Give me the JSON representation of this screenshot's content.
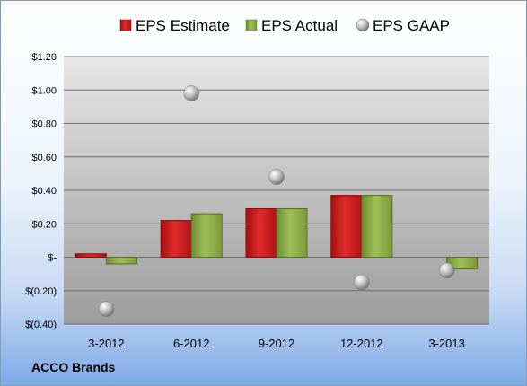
{
  "company": "ACCO Brands",
  "colors": {
    "estimate": "#d42020",
    "actual": "#8fb04a",
    "gaap": "#b8b8b8",
    "plot_bg_top": "#e6e6e6",
    "plot_bg_bottom": "#9c9c9c"
  },
  "chart_data": {
    "type": "bar",
    "categories": [
      "3-2012",
      "6-2012",
      "9-2012",
      "12-2012",
      "3-2013"
    ],
    "series": [
      {
        "name": "EPS Estimate",
        "kind": "bar",
        "values": [
          0.02,
          0.22,
          0.29,
          0.37,
          null
        ]
      },
      {
        "name": "EPS Actual",
        "kind": "bar",
        "values": [
          -0.04,
          0.26,
          0.29,
          0.37,
          -0.07
        ]
      },
      {
        "name": "EPS GAAP",
        "kind": "marker",
        "values": [
          -0.31,
          0.98,
          0.48,
          -0.15,
          -0.08
        ]
      }
    ],
    "ylim": [
      -0.4,
      1.2
    ],
    "yticks": [
      1.2,
      1.0,
      0.8,
      0.6,
      0.4,
      0.2,
      0,
      -0.2,
      -0.4
    ],
    "ytick_labels": [
      "$1.20",
      "$1.00",
      "$0.80",
      "$0.60",
      "$0.40",
      "$0.20",
      "$-",
      "$(0.20)",
      "$(0.40)"
    ],
    "legend_position": "top",
    "grid": true
  }
}
